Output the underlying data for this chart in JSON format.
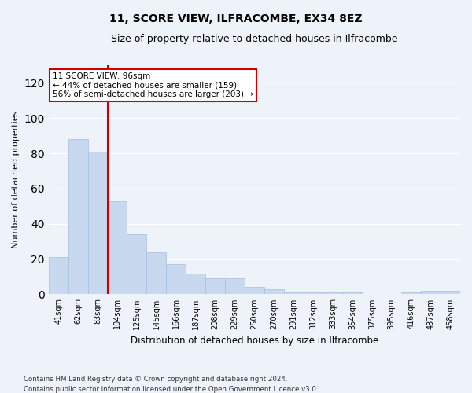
{
  "title": "11, SCORE VIEW, ILFRACOMBE, EX34 8EZ",
  "subtitle": "Size of property relative to detached houses in Ilfracombe",
  "xlabel": "Distribution of detached houses by size in Ilfracombe",
  "ylabel": "Number of detached properties",
  "bar_labels": [
    "41sqm",
    "62sqm",
    "83sqm",
    "104sqm",
    "125sqm",
    "145sqm",
    "166sqm",
    "187sqm",
    "208sqm",
    "229sqm",
    "250sqm",
    "270sqm",
    "291sqm",
    "312sqm",
    "333sqm",
    "354sqm",
    "375sqm",
    "395sqm",
    "416sqm",
    "437sqm",
    "458sqm"
  ],
  "bar_values": [
    21,
    88,
    81,
    53,
    34,
    24,
    17,
    12,
    9,
    9,
    4,
    3,
    1,
    1,
    1,
    1,
    0,
    0,
    1,
    2,
    2
  ],
  "bar_color": "#c8d8ee",
  "bar_edgecolor": "#a8c0dd",
  "ylim": [
    0,
    130
  ],
  "yticks": [
    0,
    20,
    40,
    60,
    80,
    100,
    120
  ],
  "vline_x_index": 2.5,
  "vline_color": "#cc0000",
  "annotation_text": "11 SCORE VIEW: 96sqm\n← 44% of detached houses are smaller (159)\n56% of semi-detached houses are larger (203) →",
  "annotation_box_edgecolor": "#cc0000",
  "annotation_box_facecolor": "white",
  "footer": "Contains HM Land Registry data © Crown copyright and database right 2024.\nContains public sector information licensed under the Open Government Licence v3.0.",
  "bg_color": "#eef2f9",
  "plot_bg_color": "#eef2f9",
  "grid_color": "#ffffff",
  "title_fontsize": 10,
  "subtitle_fontsize": 9
}
